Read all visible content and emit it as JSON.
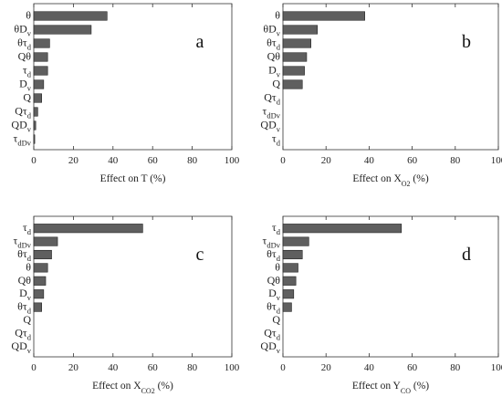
{
  "chart_data": [
    {
      "type": "bar",
      "orientation": "horizontal",
      "panel_label": "a",
      "xlabel": "Effect on T (%)",
      "xlabel_main": "Effect on T",
      "xlabel_sub": "",
      "xlabel_tail": " (%)",
      "xlim": [
        0,
        100
      ],
      "xticks": [
        0,
        20,
        40,
        60,
        80,
        100
      ],
      "categories": [
        "θ",
        "θD_v",
        "θτ_d",
        "Qθ",
        "τ_d",
        "D_v",
        "Q",
        "Qτ_d",
        "QD_v",
        "τ_dD_v"
      ],
      "values": [
        37,
        29,
        8,
        7,
        7,
        5,
        4,
        2,
        1,
        0.5
      ]
    },
    {
      "type": "bar",
      "orientation": "horizontal",
      "panel_label": "b",
      "xlabel": "Effect on XO2 (%)",
      "xlabel_main": "Effect on X",
      "xlabel_sub": "O2",
      "xlabel_tail": " (%)",
      "xlim": [
        0,
        100
      ],
      "xticks": [
        0,
        20,
        40,
        60,
        80,
        100
      ],
      "categories": [
        "θ",
        "θD_v",
        "θτ_d",
        "Qθ",
        "D_v",
        "Q",
        "Qτ_d",
        "τ_dD_v",
        "QD_v",
        "τ_d"
      ],
      "values": [
        38,
        16,
        13,
        11,
        10,
        9,
        0,
        0,
        0,
        0
      ]
    },
    {
      "type": "bar",
      "orientation": "horizontal",
      "panel_label": "c",
      "xlabel": "Effect on XCO2 (%)",
      "xlabel_main": "Effect on X",
      "xlabel_sub": "CO2",
      "xlabel_tail": " (%)",
      "xlim": [
        0,
        100
      ],
      "xticks": [
        0,
        20,
        40,
        60,
        80,
        100
      ],
      "categories": [
        "τ_d",
        "τ_dD_v",
        "θτ_d",
        "θ",
        "Qθ",
        "D_v",
        "θτ_d",
        "Q",
        "Qτ_d",
        "QD_v"
      ],
      "values": [
        55,
        12,
        9,
        7,
        6,
        5,
        4,
        0,
        0,
        0
      ]
    },
    {
      "type": "bar",
      "orientation": "horizontal",
      "panel_label": "d",
      "xlabel": "Effect on YCO (%)",
      "xlabel_main": "Effect on Y",
      "xlabel_sub": "CO",
      "xlabel_tail": " (%)",
      "xlim": [
        0,
        100
      ],
      "xticks": [
        0,
        20,
        40,
        60,
        80,
        100
      ],
      "categories": [
        "τ_d",
        "τ_dD_v",
        "θτ_d",
        "θ",
        "Qθ",
        "D_v",
        "θτ_d",
        "Q",
        "Qτ_d",
        "QD_v"
      ],
      "values": [
        55,
        12,
        9,
        7,
        6,
        5,
        4,
        0,
        0,
        0
      ]
    }
  ]
}
